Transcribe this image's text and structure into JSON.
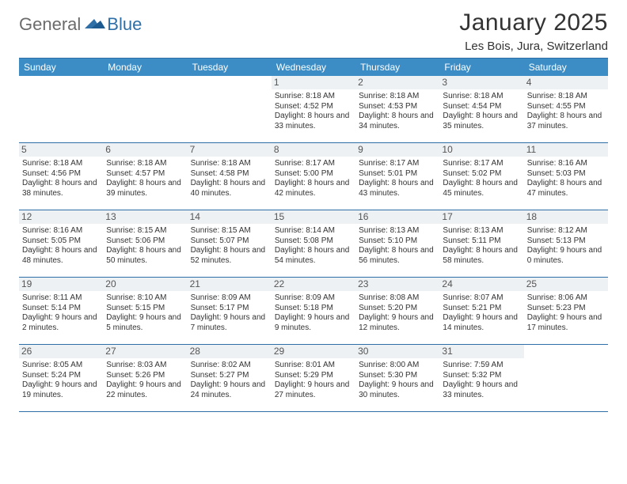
{
  "brand": {
    "general": "General",
    "blue": "Blue"
  },
  "title": "January 2025",
  "location": "Les Bois, Jura, Switzerland",
  "colors": {
    "header_bg": "#3c8dc5",
    "header_text": "#ffffff",
    "border": "#2f6fa7",
    "daynum_bg": "#eef1f3",
    "text": "#333333",
    "logo_gray": "#6b6b6b",
    "logo_blue": "#2f6fa7"
  },
  "weekdays": [
    "Sunday",
    "Monday",
    "Tuesday",
    "Wednesday",
    "Thursday",
    "Friday",
    "Saturday"
  ],
  "weeks": [
    [
      null,
      null,
      null,
      {
        "n": "1",
        "sr": "8:18 AM",
        "ss": "4:52 PM",
        "dl": "8 hours and 33 minutes."
      },
      {
        "n": "2",
        "sr": "8:18 AM",
        "ss": "4:53 PM",
        "dl": "8 hours and 34 minutes."
      },
      {
        "n": "3",
        "sr": "8:18 AM",
        "ss": "4:54 PM",
        "dl": "8 hours and 35 minutes."
      },
      {
        "n": "4",
        "sr": "8:18 AM",
        "ss": "4:55 PM",
        "dl": "8 hours and 37 minutes."
      }
    ],
    [
      {
        "n": "5",
        "sr": "8:18 AM",
        "ss": "4:56 PM",
        "dl": "8 hours and 38 minutes."
      },
      {
        "n": "6",
        "sr": "8:18 AM",
        "ss": "4:57 PM",
        "dl": "8 hours and 39 minutes."
      },
      {
        "n": "7",
        "sr": "8:18 AM",
        "ss": "4:58 PM",
        "dl": "8 hours and 40 minutes."
      },
      {
        "n": "8",
        "sr": "8:17 AM",
        "ss": "5:00 PM",
        "dl": "8 hours and 42 minutes."
      },
      {
        "n": "9",
        "sr": "8:17 AM",
        "ss": "5:01 PM",
        "dl": "8 hours and 43 minutes."
      },
      {
        "n": "10",
        "sr": "8:17 AM",
        "ss": "5:02 PM",
        "dl": "8 hours and 45 minutes."
      },
      {
        "n": "11",
        "sr": "8:16 AM",
        "ss": "5:03 PM",
        "dl": "8 hours and 47 minutes."
      }
    ],
    [
      {
        "n": "12",
        "sr": "8:16 AM",
        "ss": "5:05 PM",
        "dl": "8 hours and 48 minutes."
      },
      {
        "n": "13",
        "sr": "8:15 AM",
        "ss": "5:06 PM",
        "dl": "8 hours and 50 minutes."
      },
      {
        "n": "14",
        "sr": "8:15 AM",
        "ss": "5:07 PM",
        "dl": "8 hours and 52 minutes."
      },
      {
        "n": "15",
        "sr": "8:14 AM",
        "ss": "5:08 PM",
        "dl": "8 hours and 54 minutes."
      },
      {
        "n": "16",
        "sr": "8:13 AM",
        "ss": "5:10 PM",
        "dl": "8 hours and 56 minutes."
      },
      {
        "n": "17",
        "sr": "8:13 AM",
        "ss": "5:11 PM",
        "dl": "8 hours and 58 minutes."
      },
      {
        "n": "18",
        "sr": "8:12 AM",
        "ss": "5:13 PM",
        "dl": "9 hours and 0 minutes."
      }
    ],
    [
      {
        "n": "19",
        "sr": "8:11 AM",
        "ss": "5:14 PM",
        "dl": "9 hours and 2 minutes."
      },
      {
        "n": "20",
        "sr": "8:10 AM",
        "ss": "5:15 PM",
        "dl": "9 hours and 5 minutes."
      },
      {
        "n": "21",
        "sr": "8:09 AM",
        "ss": "5:17 PM",
        "dl": "9 hours and 7 minutes."
      },
      {
        "n": "22",
        "sr": "8:09 AM",
        "ss": "5:18 PM",
        "dl": "9 hours and 9 minutes."
      },
      {
        "n": "23",
        "sr": "8:08 AM",
        "ss": "5:20 PM",
        "dl": "9 hours and 12 minutes."
      },
      {
        "n": "24",
        "sr": "8:07 AM",
        "ss": "5:21 PM",
        "dl": "9 hours and 14 minutes."
      },
      {
        "n": "25",
        "sr": "8:06 AM",
        "ss": "5:23 PM",
        "dl": "9 hours and 17 minutes."
      }
    ],
    [
      {
        "n": "26",
        "sr": "8:05 AM",
        "ss": "5:24 PM",
        "dl": "9 hours and 19 minutes."
      },
      {
        "n": "27",
        "sr": "8:03 AM",
        "ss": "5:26 PM",
        "dl": "9 hours and 22 minutes."
      },
      {
        "n": "28",
        "sr": "8:02 AM",
        "ss": "5:27 PM",
        "dl": "9 hours and 24 minutes."
      },
      {
        "n": "29",
        "sr": "8:01 AM",
        "ss": "5:29 PM",
        "dl": "9 hours and 27 minutes."
      },
      {
        "n": "30",
        "sr": "8:00 AM",
        "ss": "5:30 PM",
        "dl": "9 hours and 30 minutes."
      },
      {
        "n": "31",
        "sr": "7:59 AM",
        "ss": "5:32 PM",
        "dl": "9 hours and 33 minutes."
      },
      null
    ]
  ],
  "labels": {
    "sunrise": "Sunrise:",
    "sunset": "Sunset:",
    "daylight": "Daylight:"
  }
}
